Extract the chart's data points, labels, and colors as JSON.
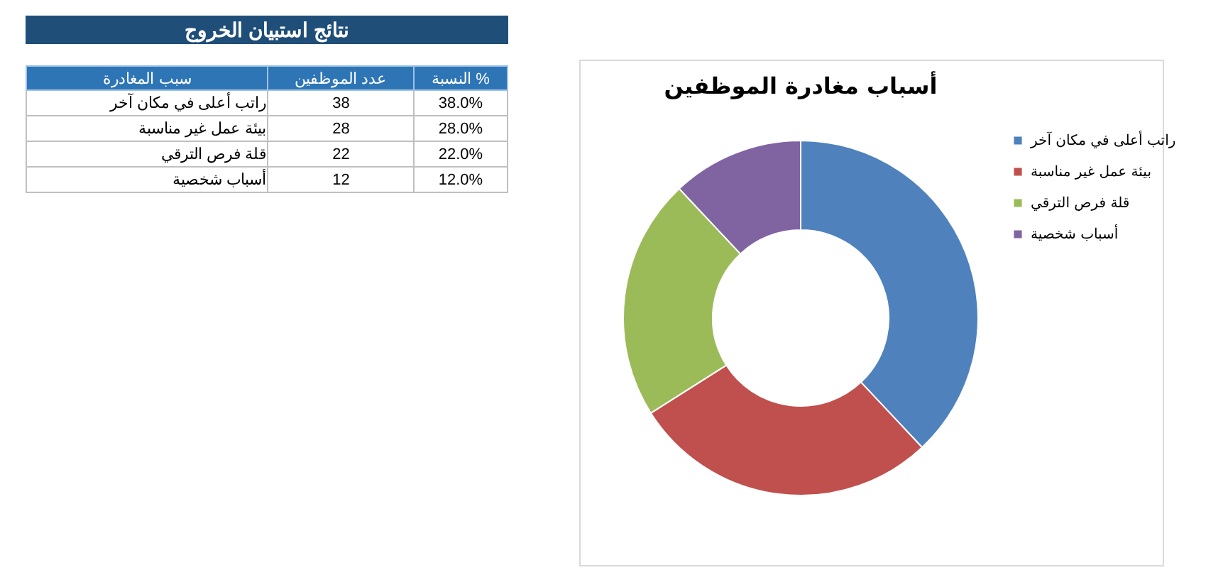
{
  "chart_data": [
    {
      "type": "other",
      "title": "نتائج استبيان الخروج",
      "annotations": [
        "سبب المغادرة",
        "عدد الموظفين",
        "النسبة %",
        "راتب أعلى في مكان آخر",
        "38",
        "38.0%",
        "بيئة عمل غير مناسبة",
        "28",
        "28.0%",
        "قلة فرص الترقي",
        "22",
        "22.0%",
        "أسباب شخصية",
        "12",
        "12.0%"
      ]
    },
    {
      "type": "donut",
      "title": "أسباب مغادرة الموظفين",
      "categories": [
        "راتب أعلى في مكان آخر",
        "بيئة عمل غير مناسبة",
        "قلة فرص الترقي",
        "أسباب شخصية"
      ],
      "values": [
        38,
        28,
        22,
        12
      ],
      "colors": [
        "#4f81bd",
        "#c0504d",
        "#9bbb59",
        "#8064a2"
      ],
      "legend": "right"
    }
  ]
}
